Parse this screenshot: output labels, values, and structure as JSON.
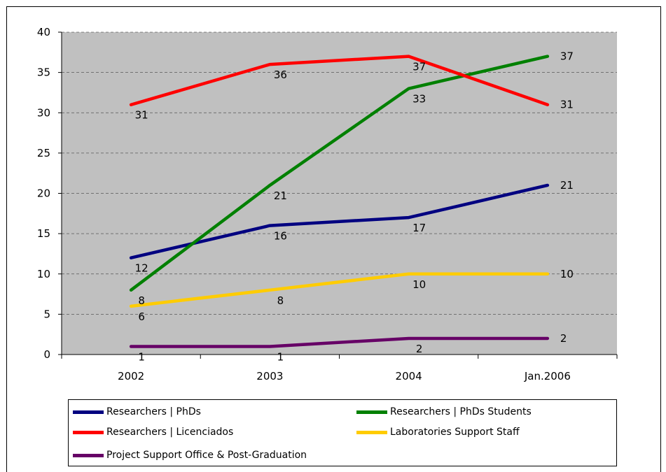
{
  "chart_data": {
    "type": "line",
    "title": "",
    "xlabel": "",
    "ylabel": "",
    "categories": [
      "2002",
      "2003",
      "2004",
      "Jan.2006"
    ],
    "ylim": [
      0,
      40
    ],
    "yticks": [
      0,
      5,
      10,
      15,
      20,
      25,
      30,
      35,
      40
    ],
    "grid": "horizontal dashed",
    "legend_position": "bottom",
    "plot_background": "#c0c0c0",
    "series": [
      {
        "name": "Researchers  |  PhDs",
        "color": "#000080",
        "values": [
          12,
          16,
          17,
          21
        ],
        "labels": [
          "12",
          "16",
          "17",
          "21"
        ]
      },
      {
        "name": "Researchers  |  PhDs Students",
        "color": "#008000",
        "values": [
          8,
          21,
          33,
          37
        ],
        "labels": [
          "8",
          "21",
          "33",
          "37"
        ]
      },
      {
        "name": "Researchers  |  Licenciados",
        "color": "#ff0000",
        "values": [
          31,
          36,
          37,
          31
        ],
        "labels": [
          "31",
          "36",
          "37",
          "31"
        ]
      },
      {
        "name": "Laboratories Support Staff",
        "color": "#ffcc00",
        "values": [
          6,
          8,
          10,
          10
        ],
        "labels": [
          "6",
          "8",
          "10",
          "10"
        ]
      },
      {
        "name": "Project Support Office & Post-Graduation",
        "color": "#660066",
        "values": [
          1,
          1,
          2,
          2
        ],
        "labels": [
          "1",
          "1",
          "2",
          "2"
        ]
      }
    ]
  }
}
